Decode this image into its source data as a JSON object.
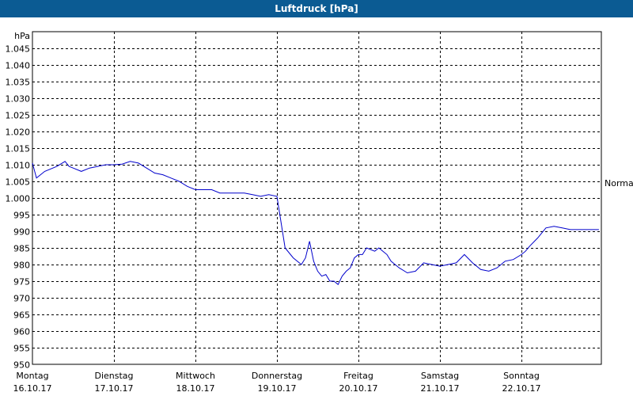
{
  "chart_data": {
    "type": "line",
    "title": "Luftdruck [hPa]",
    "ylabel": "hPa",
    "ylim": [
      950,
      1050
    ],
    "grid": true,
    "y_ticks": [
      "950",
      "955",
      "960",
      "965",
      "970",
      "975",
      "980",
      "985",
      "990",
      "995",
      "1.000",
      "1.005",
      "1.010",
      "1.015",
      "1.020",
      "1.025",
      "1.030",
      "1.035",
      "1.040",
      "1.045"
    ],
    "x_ticks": [
      {
        "day": "Montag",
        "date": "16.10.17"
      },
      {
        "day": "Dienstag",
        "date": "17.10.17"
      },
      {
        "day": "Mittwoch",
        "date": "18.10.17"
      },
      {
        "day": "Donnerstag",
        "date": "19.10.17"
      },
      {
        "day": "Freitag",
        "date": "20.10.17"
      },
      {
        "day": "Samstag",
        "date": "21.10.17"
      },
      {
        "day": "Sonntag",
        "date": "22.10.17"
      }
    ],
    "x_unit": "days since 16.10.17 00:00",
    "xlim": [
      0,
      7
    ],
    "annotation": {
      "label": "Normal",
      "value": 1004.5
    },
    "series": [
      {
        "name": "Luftdruck",
        "color": "#0000cc",
        "x": [
          0.0,
          0.05,
          0.15,
          0.3,
          0.4,
          0.45,
          0.5,
          0.6,
          0.7,
          0.8,
          0.9,
          1.0,
          1.1,
          1.2,
          1.3,
          1.4,
          1.5,
          1.6,
          1.7,
          1.8,
          1.9,
          2.0,
          2.1,
          2.2,
          2.3,
          2.4,
          2.5,
          2.6,
          2.7,
          2.8,
          2.9,
          3.0,
          3.1,
          3.2,
          3.3,
          3.35,
          3.4,
          3.45,
          3.5,
          3.55,
          3.6,
          3.65,
          3.7,
          3.75,
          3.8,
          3.85,
          3.9,
          3.95,
          4.0,
          4.05,
          4.1,
          4.15,
          4.2,
          4.25,
          4.3,
          4.35,
          4.4,
          4.5,
          4.6,
          4.7,
          4.8,
          4.9,
          5.0,
          5.1,
          5.2,
          5.3,
          5.4,
          5.5,
          5.6,
          5.7,
          5.8,
          5.9,
          6.0,
          6.05,
          6.1,
          6.2,
          6.25,
          6.3,
          6.4,
          6.5,
          6.6,
          6.7,
          6.8,
          6.9,
          6.95
        ],
        "y": [
          1010.5,
          1006,
          1008,
          1009.5,
          1011,
          1009.5,
          1009,
          1008,
          1009,
          1009.5,
          1010,
          1010,
          1010.2,
          1011,
          1010.5,
          1009,
          1007.5,
          1007,
          1006,
          1005,
          1003.5,
          1002.5,
          1002.5,
          1002.5,
          1001.5,
          1001.5,
          1001.5,
          1001.5,
          1001,
          1000.5,
          1001,
          1000.5,
          985,
          982,
          980,
          982,
          987,
          981,
          978,
          976.5,
          977,
          975,
          975,
          974,
          976.5,
          978,
          979,
          982,
          983,
          983,
          985,
          984.5,
          984,
          985,
          984,
          983,
          981,
          979,
          977.5,
          978,
          980.5,
          980,
          979.5,
          980,
          980.5,
          983,
          980.5,
          978.5,
          978,
          979,
          981,
          981.5,
          983,
          984,
          985.5,
          988,
          989.5,
          991,
          991.5,
          991,
          990.5,
          990.5,
          990.5,
          990.5,
          990.5
        ]
      }
    ]
  }
}
